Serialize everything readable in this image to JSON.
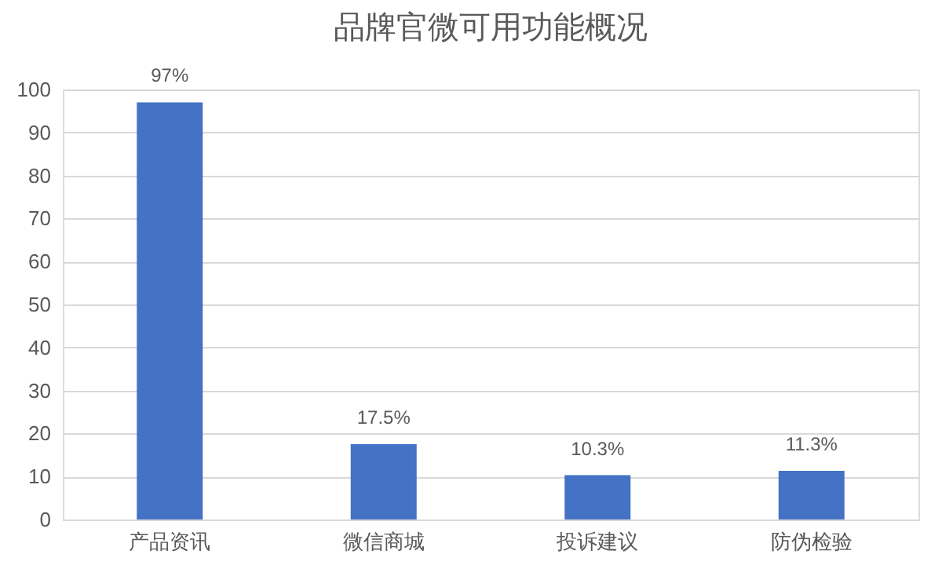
{
  "chart_data": {
    "type": "bar",
    "title": "品牌官微可用功能概况",
    "categories": [
      "产品资讯",
      "微信商城",
      "投诉建议",
      "防伪检验"
    ],
    "values": [
      97,
      17.5,
      10.3,
      11.3
    ],
    "value_labels": [
      "97%",
      "17.5%",
      "10.3%",
      "11.3%"
    ],
    "color": "#4472c4",
    "ylim": [
      0,
      100
    ],
    "yticks": [
      0,
      10,
      20,
      30,
      40,
      50,
      60,
      70,
      80,
      90,
      100
    ],
    "grid": "y"
  }
}
